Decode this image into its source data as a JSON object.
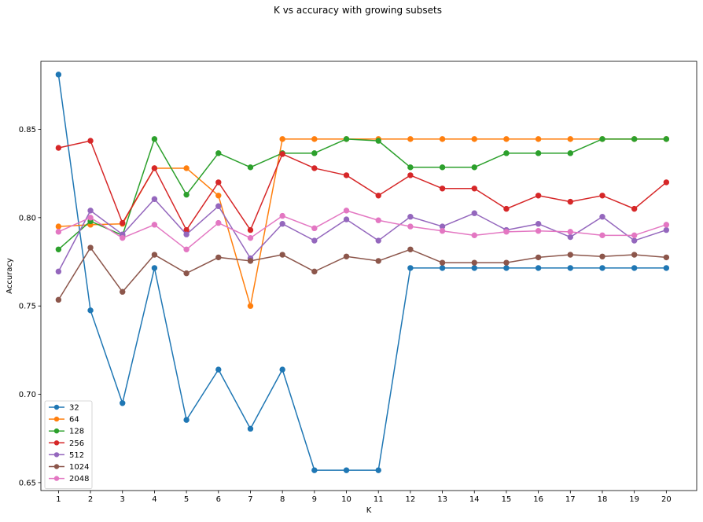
{
  "chart_data": {
    "type": "line",
    "title": "K vs accuracy with growing subsets",
    "xlabel": "K",
    "ylabel": "Accuracy",
    "xlim": [
      0.45,
      20.95
    ],
    "ylim": [
      0.6455,
      0.8885
    ],
    "x": [
      1,
      2,
      3,
      4,
      5,
      6,
      7,
      8,
      9,
      10,
      11,
      12,
      13,
      14,
      15,
      16,
      17,
      18,
      19,
      20
    ],
    "xticks": [
      "1",
      "2",
      "3",
      "4",
      "5",
      "6",
      "7",
      "8",
      "9",
      "10",
      "11",
      "12",
      "13",
      "14",
      "15",
      "16",
      "17",
      "18",
      "19",
      "20"
    ],
    "yticks": [
      {
        "value": 0.65,
        "label": "0.65"
      },
      {
        "value": 0.7,
        "label": "0.70"
      },
      {
        "value": 0.75,
        "label": "0.75"
      },
      {
        "value": 0.8,
        "label": "0.80"
      },
      {
        "value": 0.85,
        "label": "0.85"
      }
    ],
    "grid": false,
    "legend_position": "bottom-left",
    "series": [
      {
        "name": "32",
        "color": "#1f77b4",
        "values": [
          0.881,
          0.7475,
          0.695,
          0.7715,
          0.6855,
          0.714,
          0.6805,
          0.714,
          0.657,
          0.657,
          0.657,
          0.7715,
          0.7715,
          0.7715,
          0.7715,
          0.7715,
          0.7715,
          0.7715,
          0.7715,
          0.7715
        ]
      },
      {
        "name": "64",
        "color": "#ff7f0e",
        "values": [
          0.795,
          0.796,
          0.7965,
          0.828,
          0.828,
          0.8125,
          0.75,
          0.8445,
          0.8445,
          0.8445,
          0.8445,
          0.8445,
          0.8445,
          0.8445,
          0.8445,
          0.8445,
          0.8445,
          0.8445,
          0.8445,
          0.8445
        ]
      },
      {
        "name": "128",
        "color": "#2ca02c",
        "values": [
          0.782,
          0.798,
          0.79,
          0.8445,
          0.813,
          0.8365,
          0.8285,
          0.8365,
          0.8365,
          0.8445,
          0.8435,
          0.8285,
          0.8285,
          0.8285,
          0.8365,
          0.8365,
          0.8365,
          0.8445,
          0.8445,
          0.8445
        ]
      },
      {
        "name": "256",
        "color": "#d62728",
        "values": [
          0.8395,
          0.8435,
          0.797,
          0.828,
          0.793,
          0.82,
          0.793,
          0.836,
          0.828,
          0.824,
          0.8125,
          0.824,
          0.8165,
          0.8165,
          0.805,
          0.8125,
          0.809,
          0.8125,
          0.805,
          0.82
        ]
      },
      {
        "name": "512",
        "color": "#9467bd",
        "values": [
          0.7695,
          0.804,
          0.7905,
          0.8105,
          0.7905,
          0.8065,
          0.777,
          0.7965,
          0.787,
          0.799,
          0.787,
          0.8005,
          0.795,
          0.8025,
          0.793,
          0.7965,
          0.789,
          0.8005,
          0.787,
          0.793
        ]
      },
      {
        "name": "1024",
        "color": "#8c564b",
        "values": [
          0.7535,
          0.783,
          0.758,
          0.779,
          0.7685,
          0.7775,
          0.7755,
          0.779,
          0.7695,
          0.778,
          0.7755,
          0.782,
          0.7745,
          0.7745,
          0.7745,
          0.7775,
          0.779,
          0.778,
          0.779,
          0.7775
        ]
      },
      {
        "name": "2048",
        "color": "#e377c2",
        "values": [
          0.792,
          0.8,
          0.7885,
          0.796,
          0.782,
          0.797,
          0.7885,
          0.801,
          0.794,
          0.804,
          0.7985,
          0.795,
          0.7925,
          0.79,
          0.792,
          0.7925,
          0.792,
          0.79,
          0.79,
          0.796
        ]
      }
    ]
  }
}
